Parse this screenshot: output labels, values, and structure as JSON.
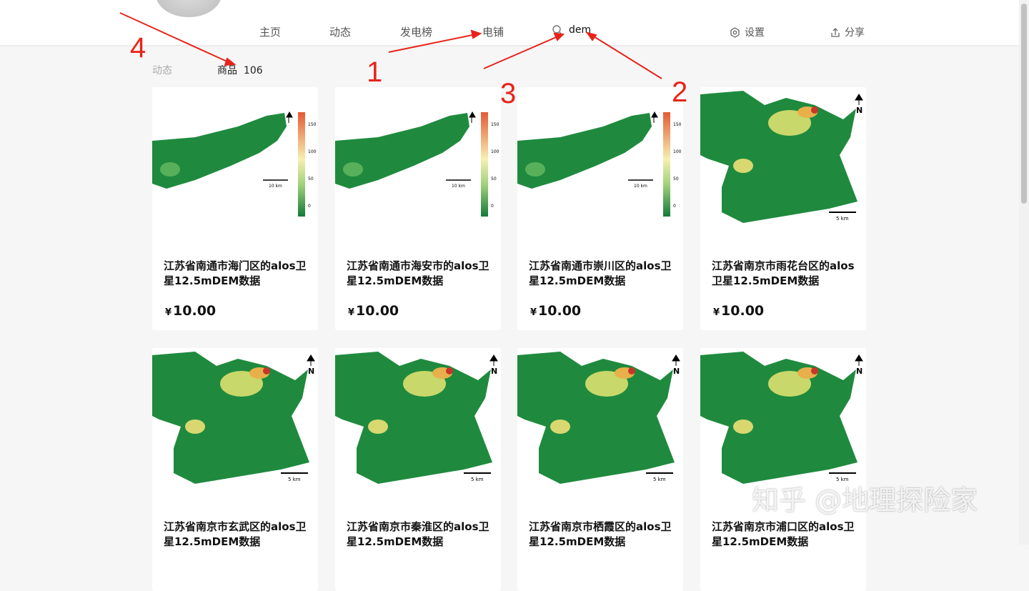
{
  "nav": {
    "items": [
      "主页",
      "动态",
      "发电榜",
      "电铺"
    ],
    "search_value": "dem",
    "settings": "设置",
    "share": "分享"
  },
  "tabs": {
    "dynamic": "动态",
    "goods": "商品",
    "goods_count": "106"
  },
  "annotations": [
    "1",
    "2",
    "3",
    "4"
  ],
  "watermark": "知乎 @地理探险家",
  "products": [
    {
      "title": "江苏省南通市海门区的alos卫星12.5mDEM数据",
      "price": "10.00",
      "map": "nantong",
      "scale": "10 km",
      "legend": [
        "150",
        "100",
        "50",
        "0"
      ]
    },
    {
      "title": "江苏省南通市海安市的alos卫星12.5mDEM数据",
      "price": "10.00",
      "map": "nantong",
      "scale": "10 km",
      "legend": [
        "150",
        "100",
        "50",
        "0"
      ]
    },
    {
      "title": "江苏省南通市崇川区的alos卫星12.5mDEM数据",
      "price": "10.00",
      "map": "nantong",
      "scale": "10 km",
      "legend": [
        "150",
        "100",
        "50",
        "0"
      ]
    },
    {
      "title": "江苏省南京市雨花台区的alos卫星12.5mDEM数据",
      "price": "10.00",
      "map": "nanjing",
      "scale": "5 km",
      "north": "N"
    },
    {
      "title": "江苏省南京市玄武区的alos卫星12.5mDEM数据",
      "price": "",
      "map": "nanjing",
      "scale": "5 km",
      "north": "N"
    },
    {
      "title": "江苏省南京市秦淮区的alos卫星12.5mDEM数据",
      "price": "",
      "map": "nanjing",
      "scale": "5 km",
      "north": "N"
    },
    {
      "title": "江苏省南京市栖霞区的alos卫星12.5mDEM数据",
      "price": "",
      "map": "nanjing",
      "scale": "5 km",
      "north": "N"
    },
    {
      "title": "江苏省南京市浦口区的alos卫星12.5mDEM数据",
      "price": "",
      "map": "nanjing",
      "scale": "5 km",
      "north": "N"
    }
  ],
  "currency": "¥",
  "colors": {
    "annotation": "#e8231a",
    "map_green": "#1f8a3e"
  }
}
